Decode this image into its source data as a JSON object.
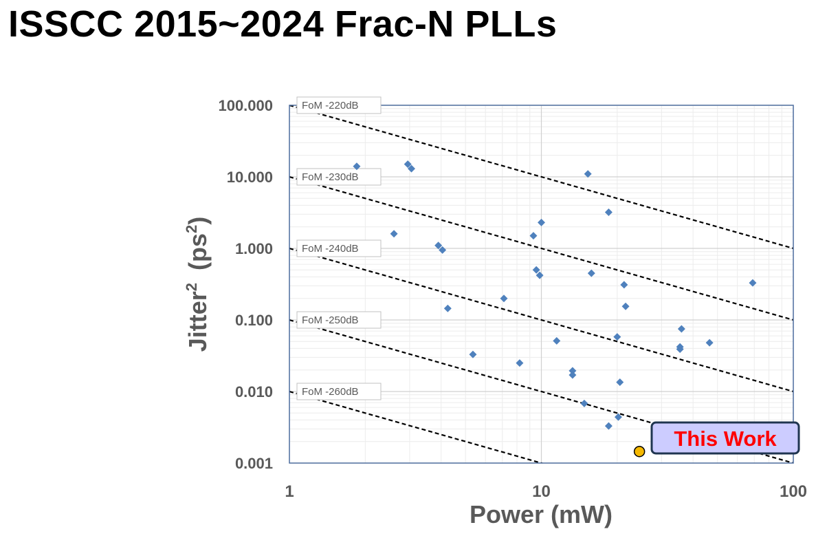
{
  "title": "ISSCC 2015~2024 Frac-N PLLs",
  "chart_data": {
    "type": "scatter",
    "title": "ISSCC 2015~2024 Frac-N PLLs",
    "xlabel": "Power (mW)",
    "ylabel_main": "Jitter",
    "ylabel_sup": "2",
    "ylabel_unit_open": "(ps",
    "ylabel_unit_close": ")",
    "x_scale": "log",
    "y_scale": "log",
    "xlim": [
      1,
      100
    ],
    "ylim": [
      0.001,
      100
    ],
    "x_ticks": [
      {
        "value": 1,
        "label": "1"
      },
      {
        "value": 10,
        "label": "10"
      },
      {
        "value": 100,
        "label": "100"
      }
    ],
    "y_ticks": [
      {
        "value": 100,
        "label": "100.000"
      },
      {
        "value": 10,
        "label": "10.000"
      },
      {
        "value": 1,
        "label": "1.000"
      },
      {
        "value": 0.1,
        "label": "0.100"
      },
      {
        "value": 0.01,
        "label": "0.010"
      },
      {
        "value": 0.001,
        "label": "0.001"
      }
    ],
    "grid": true,
    "fom_lines": [
      {
        "label": "FoM -220dB",
        "jitter_sq_at_1mW": 100
      },
      {
        "label": "FoM -230dB",
        "jitter_sq_at_1mW": 10
      },
      {
        "label": "FoM -240dB",
        "jitter_sq_at_1mW": 1
      },
      {
        "label": "FoM -250dB",
        "jitter_sq_at_1mW": 0.1
      },
      {
        "label": "FoM -260dB",
        "jitter_sq_at_1mW": 0.01
      }
    ],
    "series": [
      {
        "name": "",
        "color": "#4f81bd",
        "marker": "diamond",
        "points": [
          [
            1.85,
            14.0
          ],
          [
            2.95,
            15.0
          ],
          [
            3.05,
            13.0
          ],
          [
            2.6,
            1.6
          ],
          [
            3.9,
            1.1
          ],
          [
            4.05,
            0.95
          ],
          [
            4.25,
            0.145
          ],
          [
            5.35,
            0.033
          ],
          [
            7.1,
            0.2
          ],
          [
            8.2,
            0.025
          ],
          [
            9.3,
            1.5
          ],
          [
            9.55,
            0.5
          ],
          [
            9.85,
            0.42
          ],
          [
            10.0,
            2.3
          ],
          [
            11.5,
            0.051
          ],
          [
            13.3,
            0.0195
          ],
          [
            13.3,
            0.017
          ],
          [
            14.8,
            0.0068
          ],
          [
            15.3,
            11.0
          ],
          [
            15.8,
            0.45
          ],
          [
            18.5,
            3.2
          ],
          [
            18.5,
            0.0033
          ],
          [
            20.0,
            0.058
          ],
          [
            20.2,
            0.0044
          ],
          [
            20.5,
            0.0135
          ],
          [
            21.3,
            0.31
          ],
          [
            21.6,
            0.155
          ],
          [
            36.0,
            0.075
          ],
          [
            35.5,
            0.042
          ],
          [
            35.5,
            0.039
          ],
          [
            46.5,
            0.048
          ],
          [
            69.0,
            0.33
          ]
        ]
      },
      {
        "name": "This Work",
        "color": "#f5b800",
        "marker": "circle",
        "points": [
          [
            24.5,
            0.00145
          ]
        ]
      }
    ],
    "annotations": [
      {
        "text": "This Work",
        "color": "#ff0000",
        "background": "#ccccff",
        "border": "#1f3550"
      }
    ]
  }
}
